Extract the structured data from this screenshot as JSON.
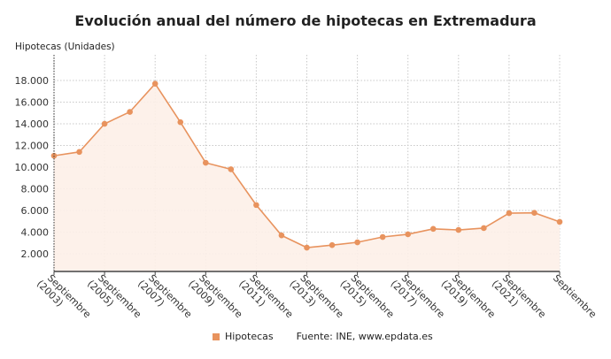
{
  "chart_data": {
    "type": "area",
    "title": "Evolución anual del número de hipotecas en Extremadura",
    "ylabel": "Hipotecas (Unidades)",
    "xlabel": "",
    "x": [
      2003,
      2004,
      2005,
      2006,
      2007,
      2008,
      2009,
      2010,
      2011,
      2012,
      2013,
      2014,
      2015,
      2016,
      2017,
      2018,
      2019,
      2020,
      2021,
      2022,
      2023
    ],
    "x_tick_labels": [
      [
        "Septiembre",
        "(2003)"
      ],
      [
        "Septiembre",
        "(2005)"
      ],
      [
        "Septiembre",
        "(2007)"
      ],
      [
        "Septiembre",
        "(2009)"
      ],
      [
        "Septiembre",
        "(2011)"
      ],
      [
        "Septiembre",
        "(2013)"
      ],
      [
        "Septiembre",
        "(2015)"
      ],
      [
        "Septiembre",
        "(2017)"
      ],
      [
        "Septiembre",
        "(2019)"
      ],
      [
        "Septiembre",
        "(2021)"
      ],
      [
        "Septiembre",
        ""
      ]
    ],
    "series": [
      {
        "name": "Hipotecas",
        "color": "#e8935e",
        "values": [
          11050,
          11400,
          14000,
          15100,
          17700,
          14150,
          10400,
          9800,
          6500,
          3700,
          2570,
          2800,
          3060,
          3550,
          3800,
          4300,
          4200,
          4370,
          5750,
          5780,
          4950
        ]
      }
    ],
    "ylim": [
      0,
      19500
    ],
    "yticks": [
      2000,
      4000,
      6000,
      8000,
      10000,
      12000,
      14000,
      16000,
      18000
    ],
    "ytick_labels": [
      "2.000",
      "4.000",
      "6.000",
      "8.000",
      "10.000",
      "12.000",
      "14.000",
      "16.000",
      "18.000"
    ],
    "grid": true,
    "legend_position": "bottom"
  },
  "source": "Fuente: INE, www.epdata.es"
}
